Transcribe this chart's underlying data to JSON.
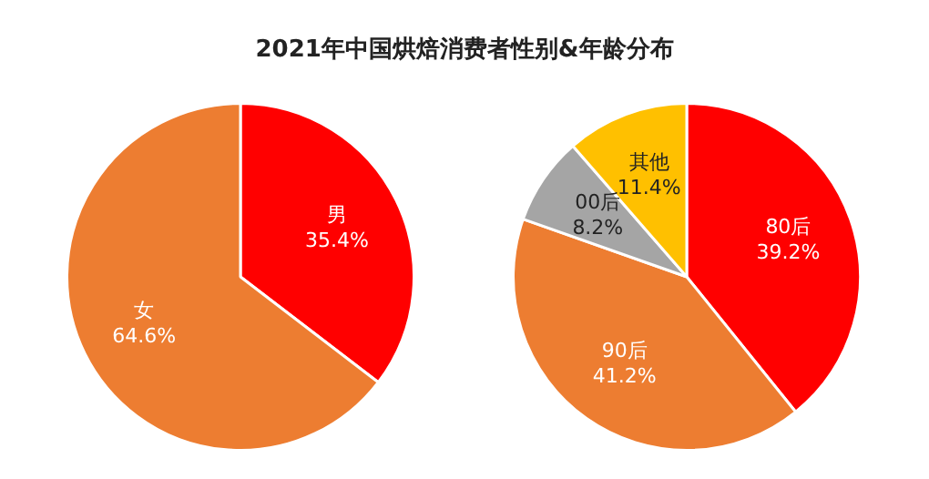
{
  "chart_data": [
    {
      "type": "pie",
      "title": "2021年中国烘焙消费者性别&年龄分布",
      "categories": [
        "男",
        "女"
      ],
      "values": [
        35.4,
        64.6
      ],
      "colors": [
        "#ff0000",
        "#ed7d31"
      ],
      "value_labels": [
        "35.4%",
        "64.6%"
      ],
      "legend": false
    },
    {
      "type": "pie",
      "categories": [
        "80后",
        "90后",
        "00后",
        "其他"
      ],
      "values": [
        39.2,
        41.2,
        8.2,
        11.4
      ],
      "colors": [
        "#ff0000",
        "#ed7d31",
        "#a5a5a5",
        "#ffc000"
      ],
      "value_labels": [
        "39.2%",
        "41.2%",
        "8.2%",
        "11.4%"
      ],
      "legend": false
    }
  ]
}
